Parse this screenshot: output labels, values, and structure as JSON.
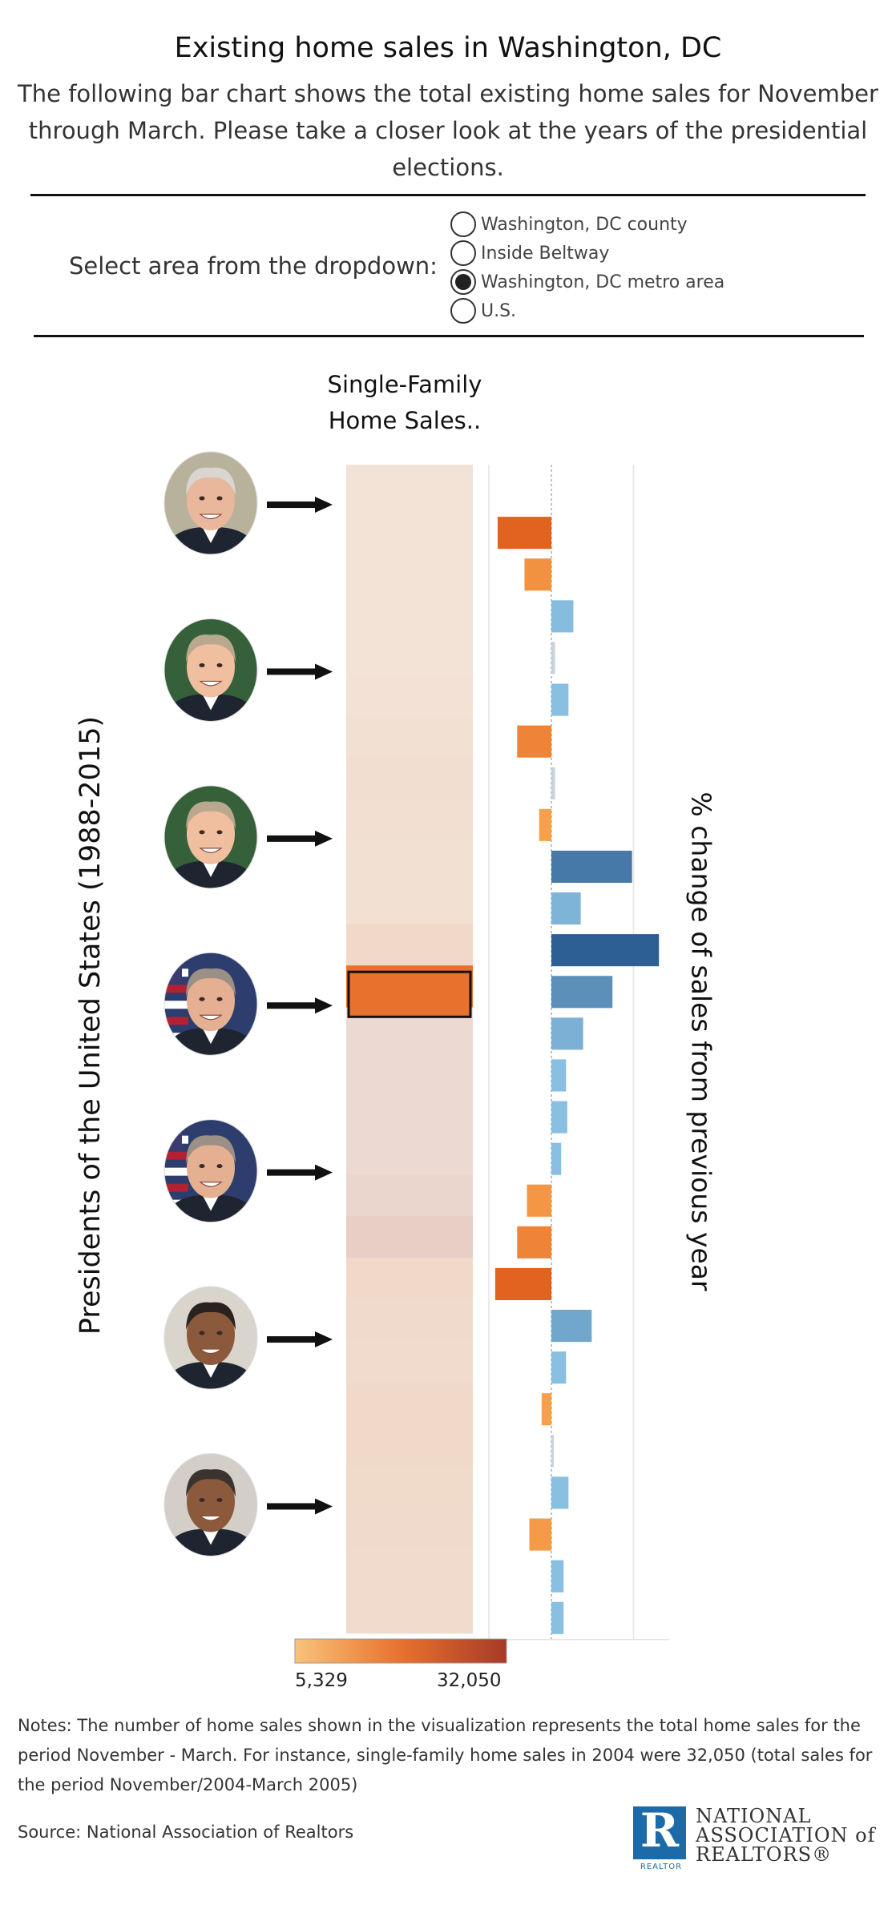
{
  "header": {
    "title": "Existing home sales in Washington, DC",
    "subtitle": "The following bar chart shows the total existing home sales for November through March. Please take a closer look at the years of the presidential elections."
  },
  "filter": {
    "label": "Select area from the dropdown:",
    "options": [
      {
        "label": "Washington, DC county",
        "selected": false
      },
      {
        "label": "Inside Beltway",
        "selected": false
      },
      {
        "label": "Washington, DC metro area",
        "selected": true
      },
      {
        "label": "U.S.",
        "selected": false
      }
    ]
  },
  "axes": {
    "left_label": "Presidents of the United States (1988-2015)",
    "right_label": "% change of sales from previous year",
    "heatmap_title": "Single-Family Home Sales.."
  },
  "legend": {
    "min_label": "5,329",
    "max_label": "32,050",
    "colors": [
      "#f9c37a",
      "#e8712e",
      "#a73a28"
    ]
  },
  "notes": "Notes: The number of home sales shown in the visualization represents the total home sales for the period November - March. For instance, single-family home sales in 2004 were 32,050 (total sales for the period November/2004-March 2005)",
  "source": "Source: National Association of Realtors",
  "logo": {
    "lines": [
      "NATIONAL",
      "ASSOCIATION of",
      "REALTORS®"
    ],
    "mark": "R",
    "tag": "REALTOR"
  },
  "colors": {
    "positive": "#89bfe0",
    "positive_dark": "#2e5f94",
    "negative": "#f6a04b",
    "negative_dark": "#e2631f",
    "rule": "#111111"
  },
  "portraits": [
    {
      "name": "portrait-1988",
      "row": 0,
      "skin": "#e9b79b",
      "hair": "#d9d6d2",
      "bg": "#b8b29c",
      "flag": false
    },
    {
      "name": "portrait-1992",
      "row": 4,
      "skin": "#efbf9f",
      "hair": "#b9a88e",
      "bg": "#36603a",
      "flag": false
    },
    {
      "name": "portrait-1996",
      "row": 8,
      "skin": "#efbf9f",
      "hair": "#b9a88e",
      "bg": "#36603a",
      "flag": false
    },
    {
      "name": "portrait-2000",
      "row": 12,
      "skin": "#e4b091",
      "hair": "#9b8f86",
      "bg": "#2c3d6e",
      "flag": true
    },
    {
      "name": "portrait-2004",
      "row": 16,
      "skin": "#e4b091",
      "hair": "#9b8f86",
      "bg": "#2c3d6e",
      "flag": true
    },
    {
      "name": "portrait-2008",
      "row": 20,
      "skin": "#8b5a3c",
      "hair": "#2a221e",
      "bg": "#d9d4cc",
      "flag": false
    },
    {
      "name": "portrait-2012",
      "row": 24,
      "skin": "#8b5a3c",
      "hair": "#3a332f",
      "bg": "#d3cfc8",
      "flag": false
    }
  ],
  "chart_data": {
    "type": "bar",
    "rows": 28,
    "highlight_row": 12,
    "heatmap_shade": [
      0.1,
      0.1,
      0.1,
      0.1,
      0.1,
      0.12,
      0.14,
      0.16,
      0.15,
      0.13,
      0.14,
      0.22,
      1.0,
      0.28,
      0.28,
      0.28,
      0.28,
      0.3,
      0.36,
      0.22,
      0.2,
      0.19,
      0.22,
      0.22,
      0.21,
      0.2,
      0.19,
      0.19
    ],
    "pct_change": [
      0,
      -22,
      -11,
      9,
      1.5,
      7,
      -14,
      1.5,
      -5,
      33,
      12,
      44,
      25,
      13,
      6,
      6.5,
      4,
      -10,
      -14,
      -23,
      16.5,
      6,
      -4,
      0.5,
      7,
      -9,
      5,
      5
    ],
    "xlim": [
      -25,
      50
    ]
  }
}
